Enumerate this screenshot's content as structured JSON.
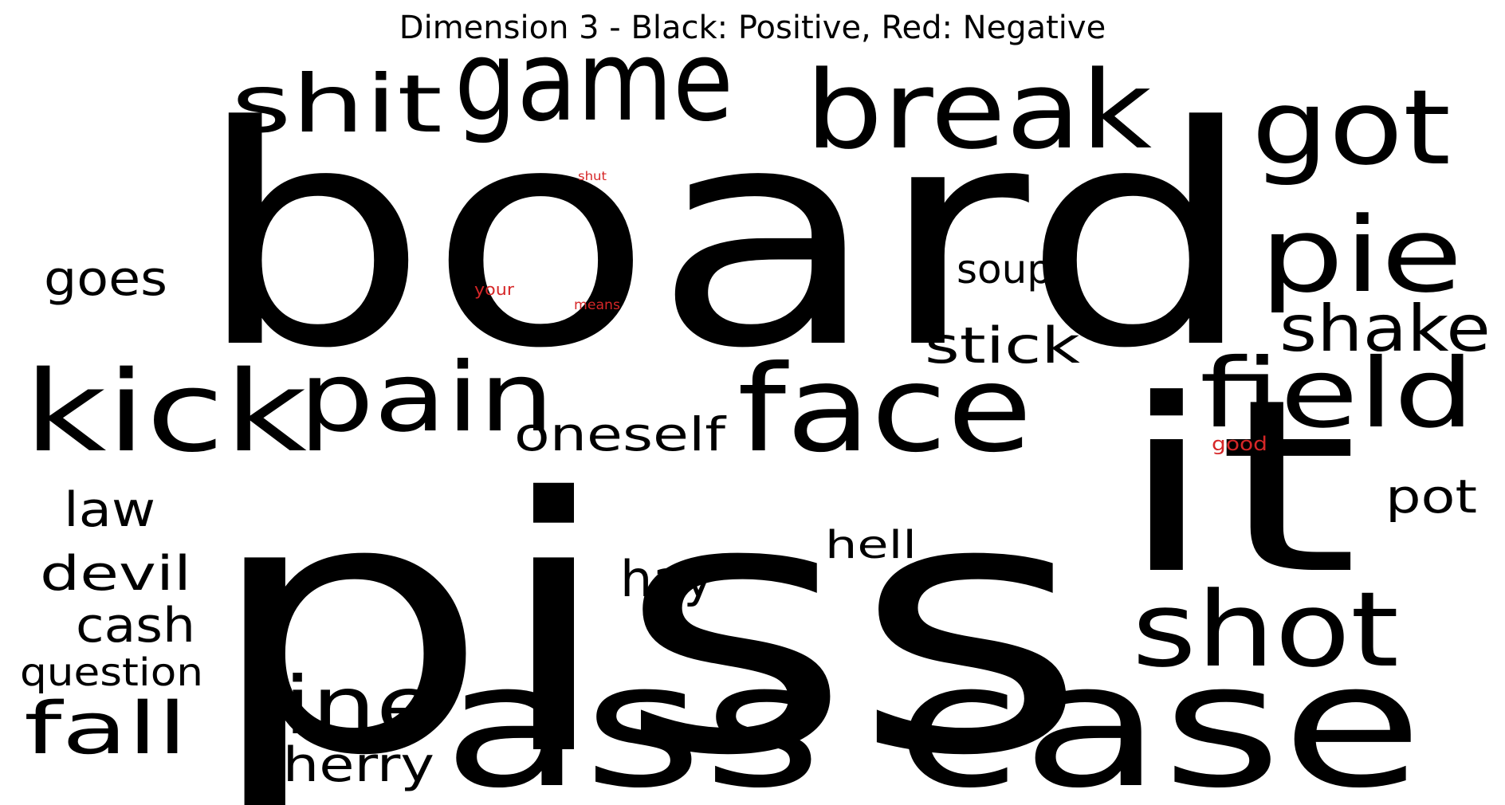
{
  "title": "Dimension 3 - Black: Positive, Red: Negative",
  "colors": {
    "positive": "#000000",
    "negative": "#d62728"
  },
  "words": [
    {
      "id": "board",
      "text": "board",
      "polarity": "positive"
    },
    {
      "id": "piss",
      "text": "piss",
      "polarity": "positive"
    },
    {
      "id": "ass-case",
      "text": "ass case",
      "polarity": "positive"
    },
    {
      "id": "it",
      "text": "it",
      "polarity": "positive"
    },
    {
      "id": "game",
      "text": "game",
      "polarity": "positive"
    },
    {
      "id": "break",
      "text": "break",
      "polarity": "positive"
    },
    {
      "id": "got",
      "text": "got",
      "polarity": "positive"
    },
    {
      "id": "shit",
      "text": "shit",
      "polarity": "positive"
    },
    {
      "id": "kick",
      "text": "kick",
      "polarity": "positive"
    },
    {
      "id": "pain",
      "text": "pain",
      "polarity": "positive"
    },
    {
      "id": "face",
      "text": "face",
      "polarity": "positive"
    },
    {
      "id": "field",
      "text": "field",
      "polarity": "positive"
    },
    {
      "id": "pie",
      "text": "pie",
      "polarity": "positive"
    },
    {
      "id": "shake",
      "text": "shake",
      "polarity": "positive"
    },
    {
      "id": "shot",
      "text": "shot",
      "polarity": "positive"
    },
    {
      "id": "line",
      "text": "line",
      "polarity": "positive"
    },
    {
      "id": "fall",
      "text": "fall",
      "polarity": "positive"
    },
    {
      "id": "goes",
      "text": "goes",
      "polarity": "positive"
    },
    {
      "id": "soup",
      "text": "soup",
      "polarity": "positive"
    },
    {
      "id": "stick",
      "text": "stick",
      "polarity": "positive"
    },
    {
      "id": "oneself",
      "text": "oneself",
      "polarity": "positive"
    },
    {
      "id": "law",
      "text": "law",
      "polarity": "positive"
    },
    {
      "id": "devil",
      "text": "devil",
      "polarity": "positive"
    },
    {
      "id": "cash",
      "text": "cash",
      "polarity": "positive"
    },
    {
      "id": "question",
      "text": "question",
      "polarity": "positive"
    },
    {
      "id": "cherry",
      "text": "cherry",
      "polarity": "positive"
    },
    {
      "id": "hay",
      "text": "hay",
      "polarity": "positive"
    },
    {
      "id": "hell",
      "text": "hell",
      "polarity": "positive"
    },
    {
      "id": "pot",
      "text": "pot",
      "polarity": "positive"
    },
    {
      "id": "shut",
      "text": "shut",
      "polarity": "negative"
    },
    {
      "id": "your",
      "text": "your",
      "polarity": "negative"
    },
    {
      "id": "means",
      "text": "means",
      "polarity": "negative"
    },
    {
      "id": "good",
      "text": "good",
      "polarity": "negative"
    }
  ]
}
